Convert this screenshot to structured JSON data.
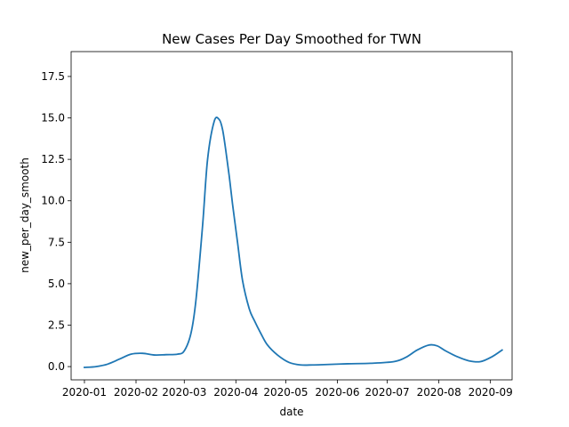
{
  "chart_data": {
    "type": "line",
    "title": "New Cases Per Day Smoothed for TWN",
    "xlabel": "date",
    "ylabel": "new_per_day_smooth",
    "grid": false,
    "legend": "none",
    "xlim": [
      "2019-12-24",
      "2020-09-14"
    ],
    "ylim": [
      -0.8,
      19.0
    ],
    "x_ticks": [
      "2020-01",
      "2020-02",
      "2020-03",
      "2020-04",
      "2020-05",
      "2020-06",
      "2020-07",
      "2020-08",
      "2020-09"
    ],
    "y_ticks": [
      "0.0",
      "2.5",
      "5.0",
      "7.5",
      "10.0",
      "12.5",
      "15.0",
      "17.5"
    ],
    "series": [
      {
        "color": "#1f77b4",
        "x": [
          "2020-01-01",
          "2020-01-08",
          "2020-01-15",
          "2020-01-22",
          "2020-01-29",
          "2020-02-05",
          "2020-02-12",
          "2020-02-19",
          "2020-02-26",
          "2020-03-01",
          "2020-03-05",
          "2020-03-08",
          "2020-03-12",
          "2020-03-15",
          "2020-03-19",
          "2020-03-22",
          "2020-03-24",
          "2020-03-26",
          "2020-03-28",
          "2020-03-30",
          "2020-04-02",
          "2020-04-05",
          "2020-04-09",
          "2020-04-12",
          "2020-04-16",
          "2020-04-20",
          "2020-04-26",
          "2020-05-03",
          "2020-05-10",
          "2020-05-17",
          "2020-05-24",
          "2020-06-07",
          "2020-06-21",
          "2020-07-05",
          "2020-07-12",
          "2020-07-19",
          "2020-07-26",
          "2020-07-31",
          "2020-08-05",
          "2020-08-12",
          "2020-08-19",
          "2020-08-26",
          "2020-09-02",
          "2020-09-08"
        ],
        "y": [
          -0.05,
          0.0,
          0.15,
          0.45,
          0.75,
          0.8,
          0.7,
          0.72,
          0.75,
          0.95,
          2.0,
          4.0,
          8.5,
          12.5,
          14.8,
          14.9,
          14.3,
          13.0,
          11.5,
          9.8,
          7.5,
          5.2,
          3.5,
          2.8,
          2.0,
          1.3,
          0.7,
          0.25,
          0.1,
          0.1,
          0.12,
          0.17,
          0.2,
          0.3,
          0.55,
          1.0,
          1.3,
          1.25,
          0.95,
          0.6,
          0.35,
          0.3,
          0.6,
          1.0
        ]
      }
    ]
  }
}
